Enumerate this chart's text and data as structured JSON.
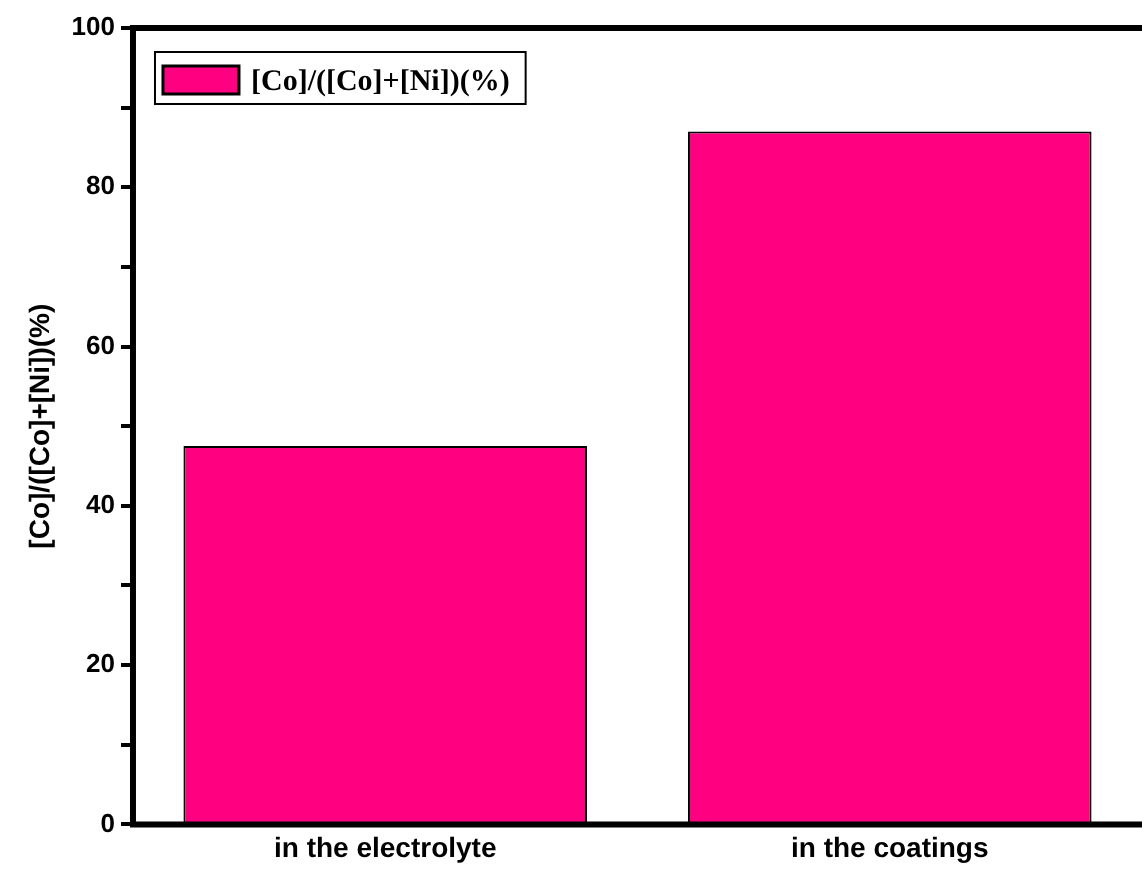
{
  "chart_data": {
    "type": "bar",
    "ylabel": "[Co]/([Co]+[Ni])(%)",
    "categories": [
      "in the electrolyte",
      "in the coatings"
    ],
    "series": [
      {
        "name": "[Co]/([Co]+[Ni])(%)",
        "color": "#ff0080",
        "values": [
          47.5,
          87
        ]
      }
    ],
    "ylim": [
      0,
      100
    ],
    "yticks": [
      0,
      {
        "value": 10,
        "label": null
      },
      20,
      {
        "value": 30,
        "label": null
      },
      40,
      {
        "value": 50,
        "label": null
      },
      60,
      {
        "value": 70,
        "label": null
      },
      80,
      {
        "value": 90,
        "label": null
      },
      100
    ],
    "grid": false,
    "legend": "top left"
  }
}
